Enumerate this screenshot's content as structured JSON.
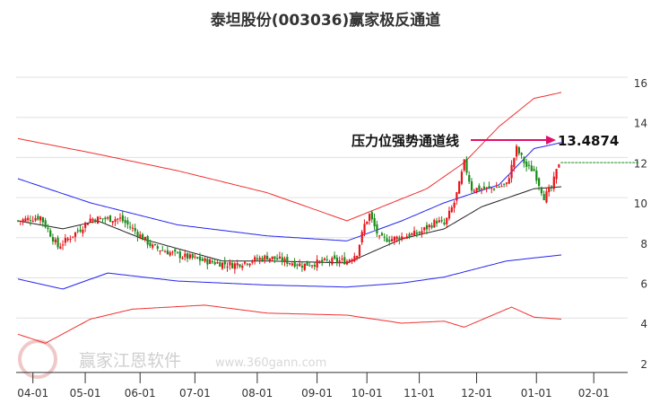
{
  "title": "泰坦股份(003036)赢家极反通道",
  "watermark": {
    "name": "赢家江恩软件",
    "url": "www.360gann.com",
    "seal": [
      "江",
      "赢",
      "恩",
      "家"
    ]
  },
  "annotation": {
    "label": "压力位强势通道线",
    "value": "13.4874"
  },
  "colors": {
    "up": "#e8141a",
    "down": "#1a8a1a",
    "upper_outer": "#f03030",
    "inner": "#2424ee",
    "mid": "#222222",
    "arrow": "#e0106a",
    "dashed": "#1a8a1a"
  },
  "chart_data": {
    "type": "line",
    "title": "泰坦股份(003036)赢家极反通道",
    "ylim": [
      2,
      16.8
    ],
    "xlim": [
      0,
      247
    ],
    "yticks": [
      16,
      14,
      12,
      10,
      8,
      6,
      4,
      2
    ],
    "xticks": [
      {
        "label": "04-01",
        "t": 6
      },
      {
        "label": "05-01",
        "t": 27
      },
      {
        "label": "06-01",
        "t": 49
      },
      {
        "label": "07-01",
        "t": 71
      },
      {
        "label": "08-01",
        "t": 96
      },
      {
        "label": "09-01",
        "t": 120
      },
      {
        "label": "10-01",
        "t": 140
      },
      {
        "label": "11-01",
        "t": 161
      },
      {
        "label": "12-01",
        "t": 184
      },
      {
        "label": "01-01",
        "t": 208
      },
      {
        "label": "02-01",
        "t": 231
      }
    ],
    "price_path": [
      [
        0,
        9.2
      ],
      [
        9,
        9.4
      ],
      [
        16,
        7.9
      ],
      [
        25,
        8.8
      ],
      [
        29,
        9.3
      ],
      [
        41,
        9.3
      ],
      [
        46,
        8.8
      ],
      [
        54,
        7.9
      ],
      [
        64,
        7.5
      ],
      [
        75,
        7.2
      ],
      [
        86,
        7.0
      ],
      [
        100,
        7.4
      ],
      [
        114,
        7.0
      ],
      [
        125,
        7.2
      ],
      [
        132,
        7.2
      ],
      [
        136,
        7.6
      ],
      [
        139,
        9.0
      ],
      [
        141,
        9.5
      ],
      [
        145,
        8.3
      ],
      [
        150,
        8.3
      ],
      [
        161,
        8.6
      ],
      [
        168,
        9.2
      ],
      [
        171,
        9.0
      ],
      [
        175,
        10.1
      ],
      [
        177,
        11.0
      ],
      [
        179,
        12.1
      ],
      [
        182,
        10.8
      ],
      [
        189,
        10.8
      ],
      [
        196,
        11.0
      ],
      [
        200,
        12.8
      ],
      [
        204,
        11.9
      ],
      [
        207,
        11.7
      ],
      [
        211,
        10.4
      ],
      [
        214,
        10.8
      ],
      [
        217,
        12.1
      ]
    ],
    "series": [
      {
        "name": "upper-red",
        "color": "#f03030",
        "points": [
          [
            0,
            13.3
          ],
          [
            29,
            12.6
          ],
          [
            64,
            11.7
          ],
          [
            100,
            10.6
          ],
          [
            132,
            9.2
          ],
          [
            164,
            10.8
          ],
          [
            179,
            12.1
          ],
          [
            193,
            13.9
          ],
          [
            207,
            15.3
          ],
          [
            218,
            15.6
          ]
        ]
      },
      {
        "name": "upper-blue",
        "color": "#2424ee",
        "points": [
          [
            0,
            11.3
          ],
          [
            29,
            10.1
          ],
          [
            64,
            9.0
          ],
          [
            100,
            8.45
          ],
          [
            132,
            8.2
          ],
          [
            154,
            9.2
          ],
          [
            171,
            10.1
          ],
          [
            193,
            11.0
          ],
          [
            207,
            12.8
          ],
          [
            218,
            13.1
          ]
        ]
      },
      {
        "name": "middle",
        "color": "#222222",
        "points": [
          [
            0,
            9.2
          ],
          [
            18,
            8.8
          ],
          [
            32,
            9.2
          ],
          [
            50,
            8.3
          ],
          [
            82,
            7.2
          ],
          [
            100,
            7.2
          ],
          [
            132,
            7.1
          ],
          [
            154,
            8.3
          ],
          [
            171,
            8.8
          ],
          [
            186,
            9.9
          ],
          [
            207,
            10.8
          ],
          [
            218,
            10.9
          ]
        ]
      },
      {
        "name": "lower-blue",
        "color": "#2424ee",
        "points": [
          [
            0,
            6.3
          ],
          [
            18,
            5.8
          ],
          [
            36,
            6.6
          ],
          [
            64,
            6.2
          ],
          [
            100,
            6.0
          ],
          [
            132,
            5.9
          ],
          [
            154,
            6.1
          ],
          [
            171,
            6.4
          ],
          [
            196,
            7.2
          ],
          [
            218,
            7.5
          ]
        ]
      },
      {
        "name": "lower-red",
        "color": "#f03030",
        "points": [
          [
            0,
            3.55
          ],
          [
            11,
            3.1
          ],
          [
            29,
            4.3
          ],
          [
            46,
            4.8
          ],
          [
            75,
            5.0
          ],
          [
            100,
            4.6
          ],
          [
            132,
            4.5
          ],
          [
            154,
            4.1
          ],
          [
            171,
            4.2
          ],
          [
            179,
            3.9
          ],
          [
            198,
            4.9
          ],
          [
            207,
            4.4
          ],
          [
            218,
            4.3
          ]
        ]
      }
    ],
    "resistance_level": 13.4874,
    "last_price": 12.1
  }
}
